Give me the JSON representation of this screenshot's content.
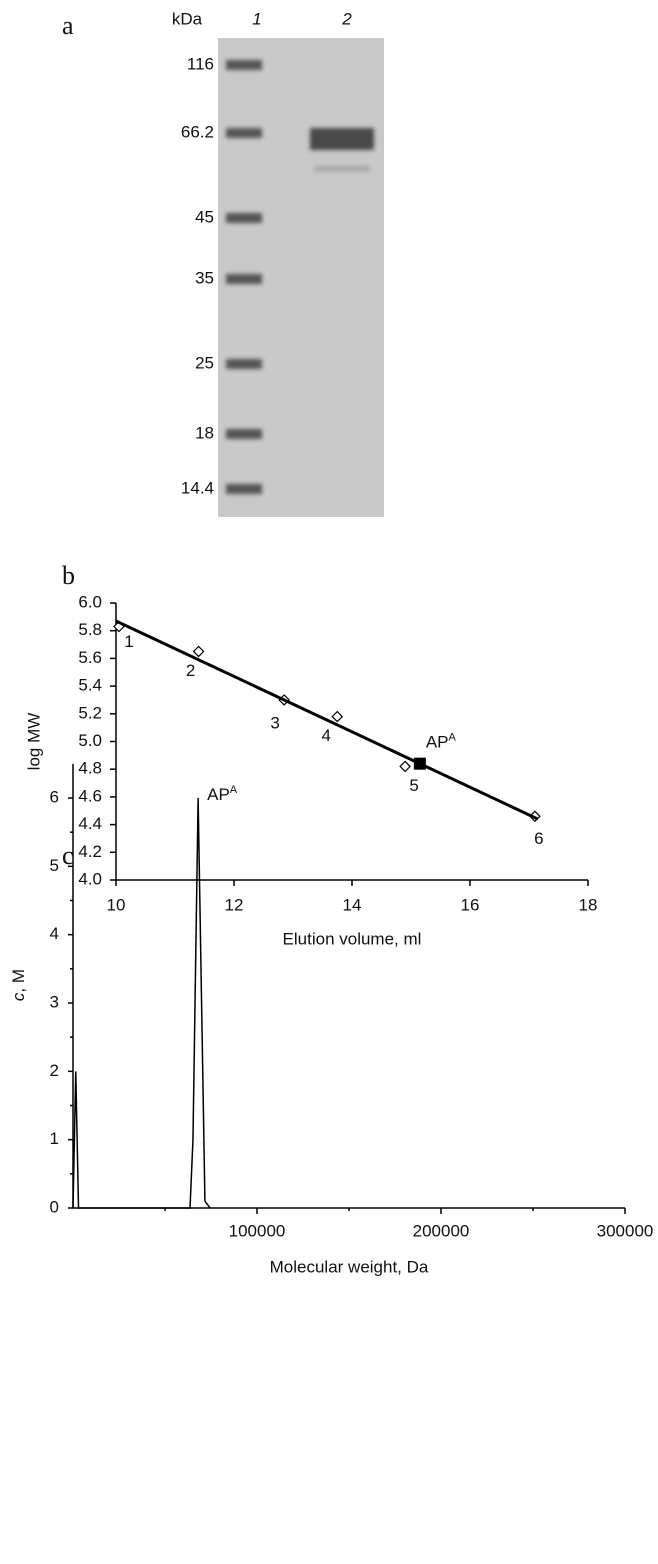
{
  "gel": {
    "panel": "a",
    "unit": "kDa",
    "lanes": [
      "1",
      "2"
    ],
    "markers": [
      116,
      66.2,
      45,
      35,
      25,
      18,
      14.4
    ]
  },
  "chart_data": [
    {
      "type": "scatter",
      "panel": "b",
      "xlabel": "Elution volume, ml",
      "ylabel": "log MW",
      "xlim": [
        10,
        18
      ],
      "xticks": [
        10,
        12,
        14,
        16,
        18
      ],
      "ylim": [
        4,
        6
      ],
      "yticks": [
        {
          "value": 4,
          "label": "4.0"
        },
        4.2,
        4.4,
        4.6,
        4.8,
        {
          "value": 5,
          "label": "5.0"
        },
        5.2,
        5.4,
        5.6,
        5.8,
        {
          "value": 6,
          "label": "6.0"
        }
      ],
      "series": [
        {
          "marker": "diamond",
          "color": "#000000",
          "x": [
            10.05,
            11.4,
            12.85,
            13.75,
            14.9,
            17.1
          ],
          "values": [
            5.83,
            5.65,
            5.3,
            5.18,
            4.82,
            4.46
          ],
          "labels": [
            "1",
            "2",
            "3",
            "4",
            "5",
            "6"
          ]
        },
        {
          "marker": "square",
          "color": "#000000",
          "x": [
            15.15
          ],
          "values": [
            4.84
          ],
          "annotation": {
            "text": "AP",
            "sup": "A"
          }
        },
        {
          "marker": "line",
          "color": "#000000",
          "x": [
            10,
            17.15
          ],
          "values": [
            5.87,
            4.44
          ]
        }
      ]
    },
    {
      "type": "line",
      "panel": "c",
      "xlabel": "Molecular weight, Da",
      "ylabel": {
        "italic": "c",
        "text": ", M"
      },
      "xlim": [
        0,
        300000
      ],
      "xticks": [
        100000,
        200000,
        300000
      ],
      "xminorticks": [
        50000,
        150000,
        250000
      ],
      "ylim": [
        0,
        6.5
      ],
      "yticks": [
        0,
        1,
        2,
        3,
        4,
        5,
        6
      ],
      "yminorticks": [
        0.5,
        1.5,
        2.5,
        3.5,
        4.5,
        5.5
      ],
      "color": "#000000",
      "x": [
        0,
        1500,
        3000,
        63600,
        65200,
        68000,
        71700,
        74500
      ],
      "values": [
        0,
        2,
        0,
        0,
        1,
        6,
        0.1,
        0
      ],
      "annotation": {
        "text": "AP",
        "sup": "A",
        "x": 68000
      }
    }
  ]
}
